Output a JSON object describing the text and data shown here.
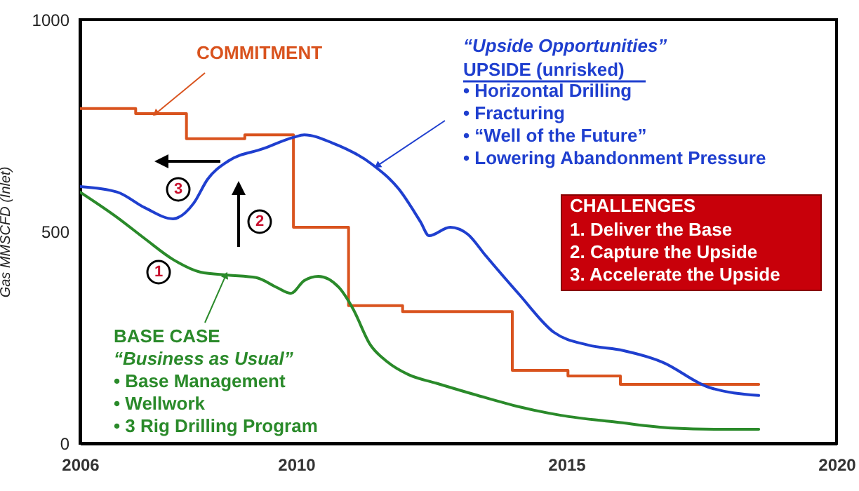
{
  "chart_data": {
    "type": "line",
    "ylabel": "Gas MMSCFD (Inlet)",
    "xlim": [
      2006,
      2020
    ],
    "xticks": [
      2006,
      2010,
      2015,
      2020
    ],
    "ylim": [
      0,
      1000
    ],
    "yticks": [
      0,
      500,
      1000
    ],
    "grid": false,
    "line_style": "solid",
    "series": [
      {
        "type": "step",
        "color": "#d9531e",
        "x": [
          2006,
          2007.03,
          2007.97,
          2009.05,
          2009.95,
          2010.97,
          2011.97,
          2014.0,
          2015.03,
          2016.0,
          2018.56
        ],
        "values": [
          790,
          778,
          719,
          728,
          510,
          325,
          311,
          172,
          159,
          139,
          139
        ]
      },
      {
        "type": "line",
        "color": "#1f3fcf",
        "x": [
          2006,
          2006.69,
          2007.2,
          2007.72,
          2008.1,
          2008.36,
          2008.74,
          2009.38,
          2009.95,
          2010.15,
          2010.67,
          2011.4,
          2011.9,
          2012.3,
          2012.46,
          2012.85,
          2013.18,
          2013.5,
          2014.13,
          2014.77,
          2015.4,
          2016.05,
          2016.77,
          2017.64,
          2018.56
        ],
        "values": [
          606,
          593,
          556,
          530,
          566,
          623,
          666,
          695,
          722,
          728,
          709,
          659,
          600,
          523,
          490,
          510,
          493,
          444,
          351,
          262,
          232,
          219,
          192,
          132,
          113
        ]
      },
      {
        "type": "line",
        "color": "#2a8a2a",
        "x": [
          2006,
          2006.69,
          2007.2,
          2007.72,
          2008.23,
          2008.74,
          2009.26,
          2009.64,
          2009.9,
          2010.15,
          2010.41,
          2010.79,
          2011.05,
          2011.36,
          2011.69,
          2012.08,
          2012.59,
          2013.36,
          2014.13,
          2014.9,
          2015.92,
          2016.95,
          2017.97,
          2018.56
        ],
        "values": [
          593,
          533,
          483,
          434,
          404,
          397,
          391,
          368,
          354,
          384,
          394,
          368,
          318,
          235,
          192,
          162,
          142,
          113,
          86,
          66,
          50,
          36,
          33,
          33
        ]
      }
    ],
    "annotations": [
      {
        "text": "COMMITMENT",
        "x": 2007.4,
        "y": 778
      },
      "UPSIDE (unrisked)",
      {
        "text": "BASE CASE",
        "x": 2008.7,
        "y": 397
      },
      "“Upside Opportunities”",
      "• Horizontal Drilling",
      {
        "text": "• Fracturing",
        "x": 2011.5,
        "y": 655
      },
      "• “Well of the Future”",
      "• Lowering Abandonment Pressure",
      "CHALLENGES",
      "1. Deliver the Base",
      "2. Capture the Upside",
      "3. Accelerate the Upside",
      "“Business as Usual”",
      "• Base Management",
      "• Wellwork",
      "• 3 Rig Drilling Program",
      "1",
      "2",
      "3"
    ]
  }
}
